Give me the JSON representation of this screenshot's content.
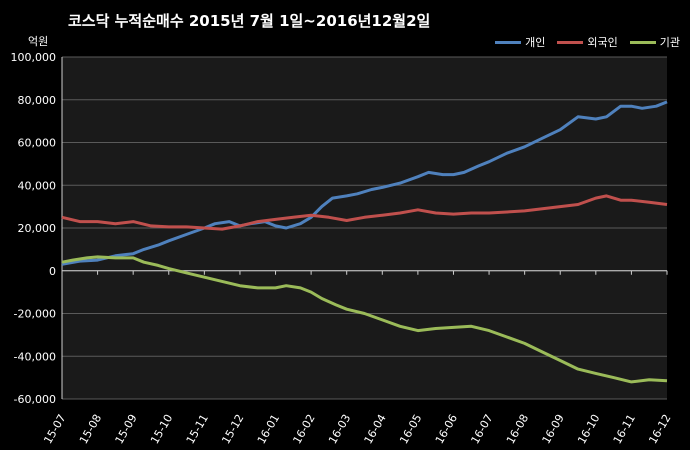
{
  "chart_data": {
    "type": "line",
    "title": "코스닥  누적순매수 2015년 7월 1일~2016년12월2일",
    "unit_label": "억원",
    "xlabel": "",
    "ylabel": "",
    "ylim": [
      -60000,
      100000
    ],
    "y_ticks": [
      "100,000",
      "80,000",
      "60,000",
      "40,000",
      "20,000",
      "0",
      "-20,000",
      "-40,000",
      "-60,000"
    ],
    "y_tick_values": [
      100000,
      80000,
      60000,
      40000,
      20000,
      0,
      -20000,
      -40000,
      -60000
    ],
    "categories": [
      "15-07",
      "15-08",
      "15-09",
      "15-10",
      "15-11",
      "15-12",
      "16-01",
      "16-02",
      "16-03",
      "16-04",
      "16-05",
      "16-06",
      "16-07",
      "16-08",
      "16-09",
      "16-10",
      "16-11",
      "16-12"
    ],
    "grid": true,
    "legend_position": "top-right",
    "series": [
      {
        "name": "개인",
        "color": "#4f81bd",
        "values": [
          [
            0,
            3000
          ],
          [
            0.5,
            4500
          ],
          [
            1,
            5000
          ],
          [
            1.5,
            7000
          ],
          [
            2,
            8000
          ],
          [
            2.3,
            10000
          ],
          [
            2.7,
            12000
          ],
          [
            3,
            14000
          ],
          [
            3.5,
            17000
          ],
          [
            4,
            20000
          ],
          [
            4.3,
            22000
          ],
          [
            4.7,
            23000
          ],
          [
            5,
            21000
          ],
          [
            5.3,
            22000
          ],
          [
            5.7,
            23000
          ],
          [
            6,
            21000
          ],
          [
            6.3,
            20000
          ],
          [
            6.7,
            22000
          ],
          [
            7,
            25000
          ],
          [
            7.3,
            30000
          ],
          [
            7.6,
            34000
          ],
          [
            8,
            35000
          ],
          [
            8.3,
            36000
          ],
          [
            8.7,
            38000
          ],
          [
            9,
            39000
          ],
          [
            9.5,
            41000
          ],
          [
            10,
            44000
          ],
          [
            10.3,
            46000
          ],
          [
            10.7,
            45000
          ],
          [
            11,
            45000
          ],
          [
            11.3,
            46000
          ],
          [
            11.7,
            49000
          ],
          [
            12,
            51000
          ],
          [
            12.5,
            55000
          ],
          [
            13,
            58000
          ],
          [
            13.5,
            62000
          ],
          [
            14,
            66000
          ],
          [
            14.5,
            72000
          ],
          [
            15,
            71000
          ],
          [
            15.3,
            72000
          ],
          [
            15.7,
            77000
          ],
          [
            16,
            77000
          ],
          [
            16.3,
            76000
          ],
          [
            16.7,
            77000
          ],
          [
            17,
            79000
          ]
        ]
      },
      {
        "name": "외국인",
        "color": "#c0504d",
        "values": [
          [
            0,
            25000
          ],
          [
            0.5,
            23000
          ],
          [
            1,
            23000
          ],
          [
            1.5,
            22000
          ],
          [
            2,
            23000
          ],
          [
            2.5,
            21000
          ],
          [
            3,
            20500
          ],
          [
            3.5,
            20500
          ],
          [
            4,
            20000
          ],
          [
            4.5,
            19500
          ],
          [
            5,
            21000
          ],
          [
            5.5,
            23000
          ],
          [
            6,
            24000
          ],
          [
            6.5,
            25000
          ],
          [
            7,
            26000
          ],
          [
            7.5,
            25000
          ],
          [
            8,
            23500
          ],
          [
            8.5,
            25000
          ],
          [
            9,
            26000
          ],
          [
            9.5,
            27000
          ],
          [
            10,
            28500
          ],
          [
            10.5,
            27000
          ],
          [
            11,
            26500
          ],
          [
            11.5,
            27000
          ],
          [
            12,
            27000
          ],
          [
            12.5,
            27500
          ],
          [
            13,
            28000
          ],
          [
            13.5,
            29000
          ],
          [
            14,
            30000
          ],
          [
            14.5,
            31000
          ],
          [
            15,
            34000
          ],
          [
            15.3,
            35000
          ],
          [
            15.7,
            33000
          ],
          [
            16,
            33000
          ],
          [
            16.5,
            32000
          ],
          [
            17,
            31000
          ]
        ]
      },
      {
        "name": "기관",
        "color": "#9bbb59",
        "values": [
          [
            0,
            4000
          ],
          [
            0.3,
            5000
          ],
          [
            0.7,
            6000
          ],
          [
            1,
            6500
          ],
          [
            1.5,
            6000
          ],
          [
            2,
            6000
          ],
          [
            2.3,
            4000
          ],
          [
            2.7,
            2500
          ],
          [
            3,
            1000
          ],
          [
            3.5,
            -1000
          ],
          [
            4,
            -3000
          ],
          [
            4.5,
            -5000
          ],
          [
            5,
            -7000
          ],
          [
            5.5,
            -8000
          ],
          [
            6,
            -8000
          ],
          [
            6.3,
            -7000
          ],
          [
            6.7,
            -8000
          ],
          [
            7,
            -10000
          ],
          [
            7.3,
            -13000
          ],
          [
            7.7,
            -16000
          ],
          [
            8,
            -18000
          ],
          [
            8.5,
            -20000
          ],
          [
            9,
            -23000
          ],
          [
            9.5,
            -26000
          ],
          [
            10,
            -28000
          ],
          [
            10.5,
            -27000
          ],
          [
            11,
            -26500
          ],
          [
            11.5,
            -26000
          ],
          [
            12,
            -28000
          ],
          [
            12.5,
            -31000
          ],
          [
            13,
            -34000
          ],
          [
            13.5,
            -38000
          ],
          [
            14,
            -42000
          ],
          [
            14.5,
            -46000
          ],
          [
            15,
            -48000
          ],
          [
            15.5,
            -50000
          ],
          [
            16,
            -52000
          ],
          [
            16.5,
            -51000
          ],
          [
            17,
            -51500
          ]
        ]
      }
    ]
  }
}
